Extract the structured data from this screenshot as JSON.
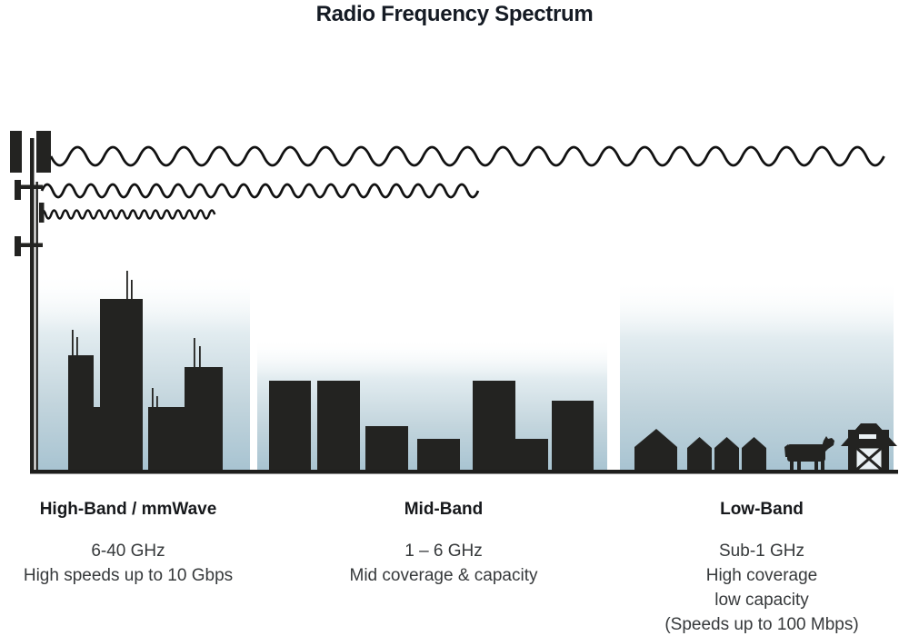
{
  "title": "Radio Frequency Spectrum",
  "bands": [
    {
      "heading": "High-Band / mmWave",
      "lines": [
        "6-40 GHz",
        "High speeds up to 10 Gbps"
      ]
    },
    {
      "heading": "Mid-Band",
      "lines": [
        "1 – 6 GHz",
        "Mid coverage & capacity"
      ]
    },
    {
      "heading": "Low-Band",
      "lines": [
        "Sub-1 GHz",
        "High coverage",
        "low capacity",
        "(Speeds up to 100 Mbps)"
      ]
    }
  ],
  "icons": {
    "cell_tower": "cell-tower-icon",
    "low_band_wave": "long-wavelength-wave-icon",
    "mid_band_wave": "medium-wavelength-wave-icon",
    "high_band_wave": "short-wavelength-wave-icon",
    "city": "city-skyline-icon",
    "suburb": "suburban-buildings-icon",
    "rural": "farm-houses-icon",
    "cow": "cow-icon",
    "barn": "barn-icon"
  },
  "colors": {
    "silhouette": "#232321",
    "sky_top": "#ffffff",
    "sky_mid": "#d9e6ec",
    "sky_bottom": "#a7c3d1",
    "heading_text": "#17191c",
    "body_text": "#36393b",
    "title_text": "#151b24",
    "ground": "#1e1e1c"
  }
}
